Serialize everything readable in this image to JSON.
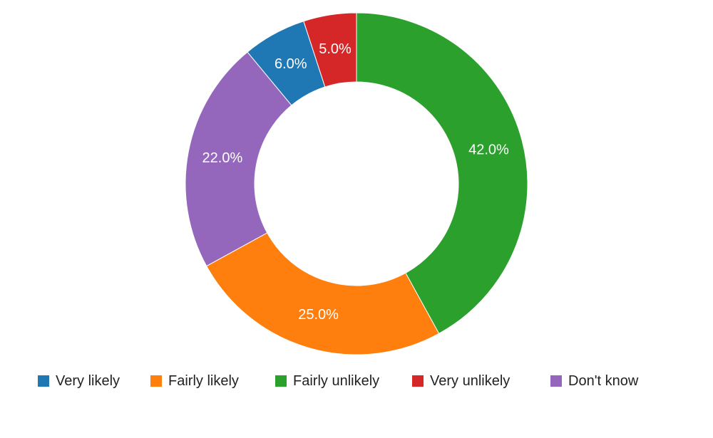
{
  "chart_data": {
    "type": "pie",
    "donut": true,
    "legend_position": "bottom",
    "categories": [
      "Very likely",
      "Fairly likely",
      "Fairly unlikely",
      "Very unlikely",
      "Don't know"
    ],
    "values": [
      6.0,
      25.0,
      42.0,
      5.0,
      22.0
    ],
    "labels": [
      "6.0%",
      "25.0%",
      "42.0%",
      "5.0%",
      "22.0%"
    ],
    "colors": [
      "#1f77b4",
      "#ff7f0e",
      "#2ca02c",
      "#d62728",
      "#9467bd"
    ],
    "draw_order": [
      "Fairly unlikely",
      "Fairly likely",
      "Don't know",
      "Very likely",
      "Very unlikely"
    ],
    "start": "top",
    "direction": "clockwise"
  }
}
